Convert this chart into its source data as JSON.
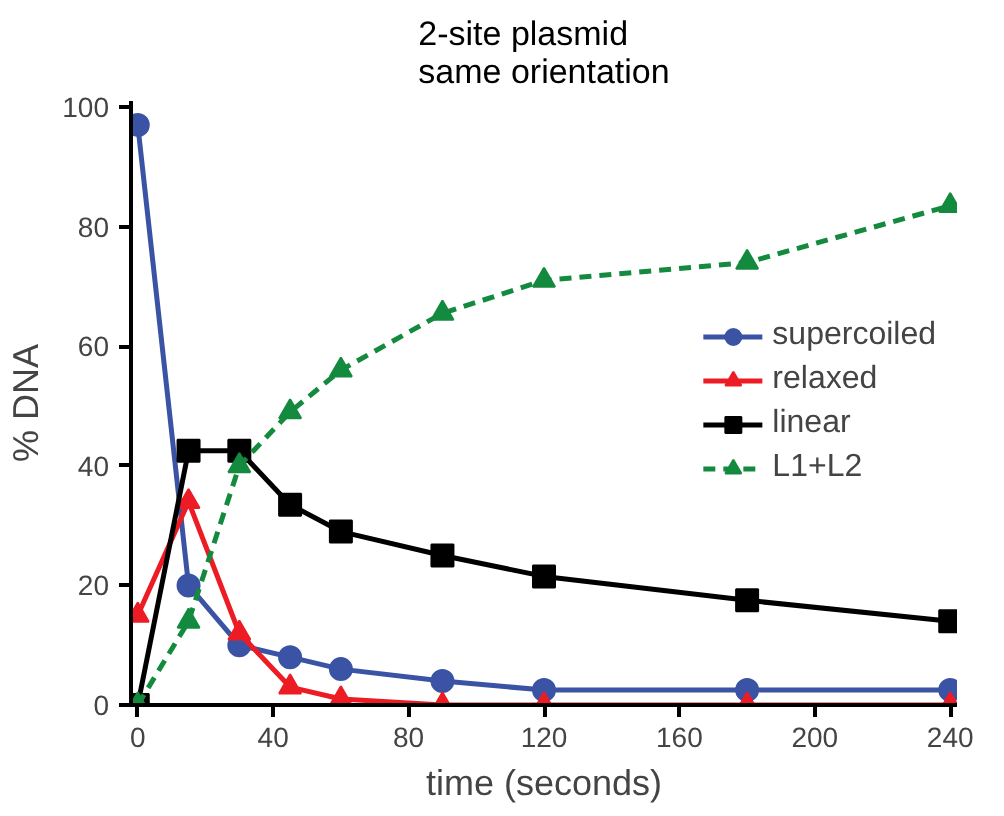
{
  "chart_data": {
    "type": "line",
    "title": "2-site plasmid\nsame orientation",
    "xlabel": "time (seconds)",
    "ylabel": "% DNA",
    "x": [
      0,
      15,
      30,
      45,
      60,
      90,
      120,
      180,
      240
    ],
    "series": [
      {
        "name": "supercoiled",
        "color": "#3a53a4",
        "marker": "circle",
        "line_style": "solid",
        "values": [
          97,
          20,
          10,
          8,
          6,
          4,
          2.5,
          2.5,
          2.5
        ]
      },
      {
        "name": "relaxed",
        "color": "#ed1c24",
        "marker": "triangle",
        "line_style": "solid",
        "values": [
          15,
          34,
          12,
          3,
          1,
          0,
          0,
          0,
          0
        ]
      },
      {
        "name": "linear",
        "color": "#000000",
        "marker": "square",
        "line_style": "solid",
        "values": [
          0,
          42.5,
          42.5,
          33.5,
          29,
          25,
          21.5,
          17.5,
          14
        ]
      },
      {
        "name": "L1+L2",
        "color": "#138a3e",
        "marker": "triangle",
        "line_style": "dashed",
        "values": [
          0,
          14,
          40,
          49,
          56,
          65.5,
          71,
          74,
          83.5
        ]
      }
    ],
    "xlim": [
      -2,
      242
    ],
    "ylim": [
      0,
      101
    ],
    "xticks": [
      0,
      40,
      80,
      120,
      160,
      200,
      240
    ],
    "yticks": [
      0,
      20,
      40,
      60,
      80,
      100
    ],
    "grid": false,
    "legend": "center right"
  }
}
